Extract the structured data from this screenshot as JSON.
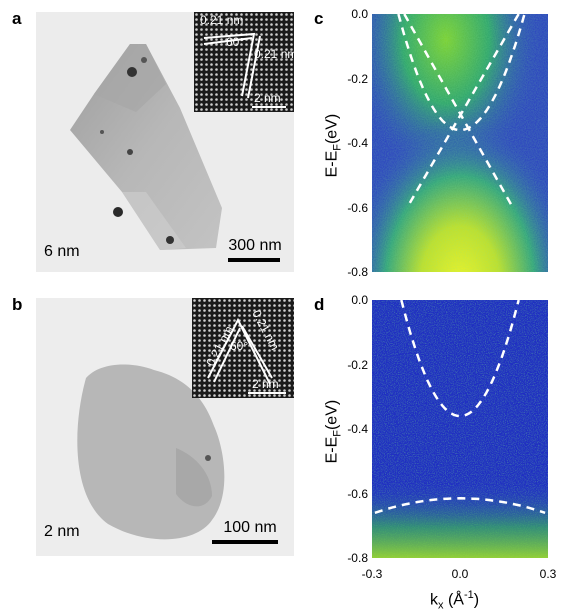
{
  "panels": {
    "a": {
      "label": "a",
      "thickness": "6 nm",
      "scalebar": "300 nm",
      "inset": {
        "d1": "0.21 nm",
        "d2": "0.21 nm",
        "angle": "60°",
        "scalebar": "2 nm"
      }
    },
    "b": {
      "label": "b",
      "thickness": "2 nm",
      "scalebar": "100 nm",
      "inset": {
        "d1": "0.21 nm",
        "d2": "0.21 nm",
        "angle": "60°",
        "scalebar": "2 nm"
      }
    },
    "c": {
      "label": "c"
    },
    "d": {
      "label": "d"
    }
  },
  "axes": {
    "ylabel_main": "E-E",
    "ylabel_sub": "F",
    "ylabel_unit": "(eV)",
    "xlabel_main": "k",
    "xlabel_sub": "x",
    "xlabel_unit_pre": " (Å",
    "xlabel_unit_sup": "-1",
    "xlabel_unit_post": ")"
  },
  "chart_data": [
    {
      "type": "heatmap",
      "panel": "c",
      "xlim": [
        -0.3,
        0.3
      ],
      "ylim": [
        -0.8,
        0.0
      ],
      "xticks": [],
      "yticks": [
        "0.0",
        "-0.2",
        "-0.4",
        "-0.6",
        "-0.8"
      ],
      "colormap": [
        "#1a26c9",
        "#1aa86a",
        "#f4ec1a"
      ],
      "guide_curves": [
        {
          "shape": "parabola",
          "vertex_k": 0.0,
          "vertex_E": -0.36,
          "ends_k": [
            -0.21,
            0.22
          ],
          "ends_E": [
            0.0,
            0.0
          ]
        },
        {
          "shape": "line",
          "from": [
            -0.19,
            0.0
          ],
          "to": [
            0.18,
            -0.6
          ]
        },
        {
          "shape": "line",
          "from": [
            0.2,
            0.0
          ],
          "to": [
            -0.18,
            -0.6
          ]
        }
      ]
    },
    {
      "type": "heatmap",
      "panel": "d",
      "xlim": [
        -0.3,
        0.3
      ],
      "ylim": [
        -0.8,
        0.0
      ],
      "xticks": [
        "-0.3",
        "0.0",
        "0.3"
      ],
      "yticks": [
        "0.0",
        "-0.2",
        "-0.4",
        "-0.6",
        "-0.8"
      ],
      "colormap": [
        "#1a26c9",
        "#1aa86a",
        "#f4ec1a"
      ],
      "guide_curves": [
        {
          "shape": "parabola",
          "vertex_k": 0.0,
          "vertex_E": -0.36,
          "ends_k": [
            -0.2,
            0.2
          ],
          "ends_E": [
            0.0,
            0.0
          ]
        },
        {
          "shape": "arc",
          "vertex_k": 0.0,
          "vertex_E": -0.615,
          "ends_k": [
            -0.29,
            0.29
          ],
          "ends_E": [
            -0.66,
            -0.66
          ]
        }
      ]
    }
  ]
}
